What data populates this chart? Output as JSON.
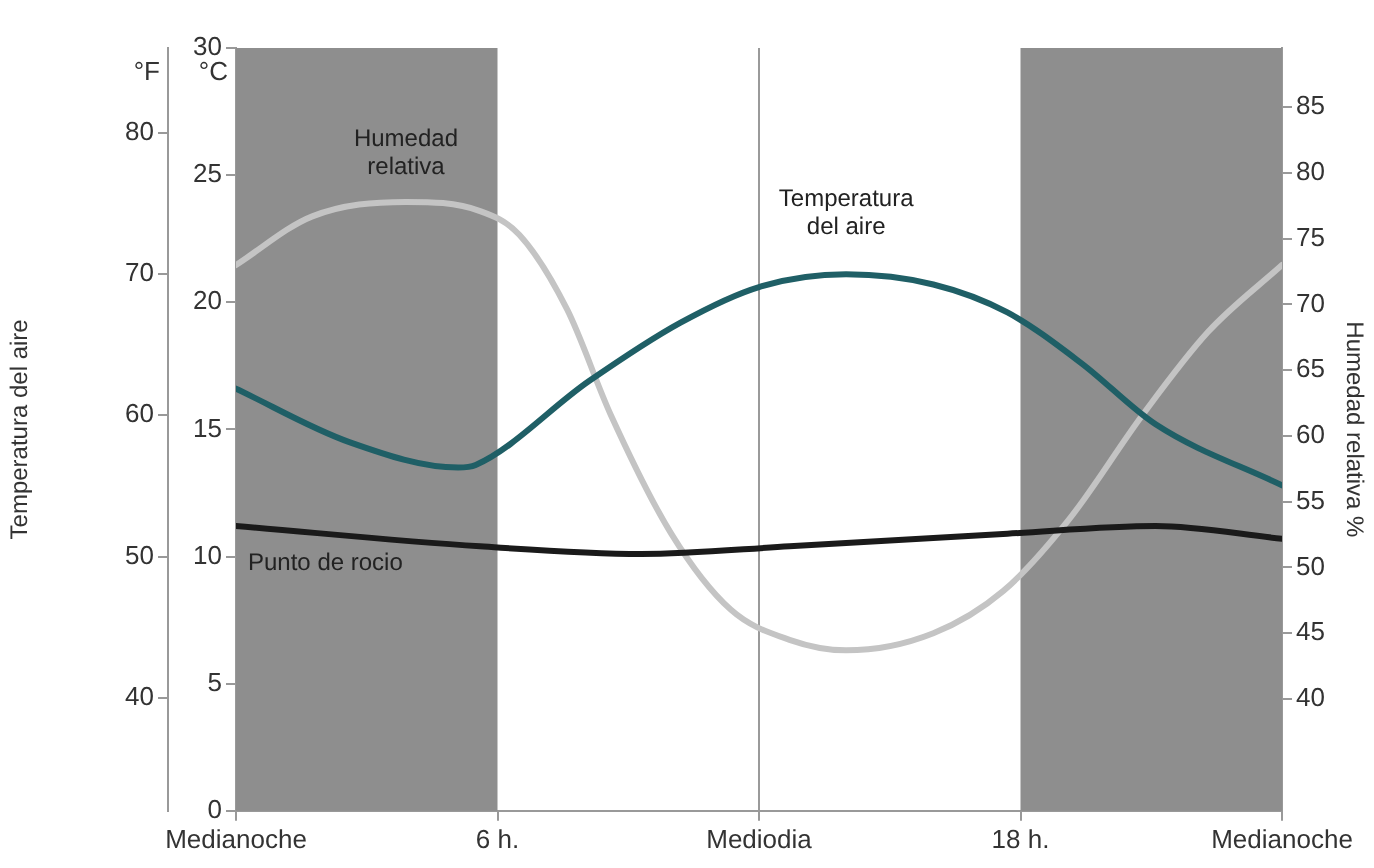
{
  "chart_data": {
    "type": "line",
    "ylabel": "Temperatura del aire",
    "y2label": "Humedad relativa %",
    "annotations": [
      "°F",
      "°C"
    ],
    "xlim": [
      0,
      24
    ],
    "xticks": [
      {
        "value": 0,
        "label": "Medianoche"
      },
      {
        "value": 6,
        "label": "6 h."
      },
      {
        "value": 12,
        "label": "Mediodia"
      },
      {
        "value": 18,
        "label": "18 h."
      },
      {
        "value": 24,
        "label": "Medianoche"
      }
    ],
    "ylim": [
      0,
      30
    ],
    "yticks": [
      0,
      5,
      10,
      15,
      20,
      25,
      30
    ],
    "y2lim": [
      31.5,
      89.5
    ],
    "y2ticks": [
      40,
      45,
      50,
      55,
      60,
      65,
      70,
      75,
      80,
      85
    ],
    "y3lim": [
      32,
      86
    ],
    "y3ticks": [
      40,
      50,
      60,
      70,
      80
    ],
    "grid": false,
    "legend": false,
    "marker": "none",
    "line_style": "solid",
    "bands": [
      {
        "axis": "x",
        "from": 0,
        "to": 6,
        "color": "#8e8e8e"
      },
      {
        "axis": "x",
        "from": 18,
        "to": 24,
        "color": "#8e8e8e"
      }
    ],
    "ref_lines": [
      {
        "axis": "x",
        "value": 12,
        "color": "#9a9a9a"
      }
    ],
    "series": [
      {
        "name": "Temperatura del aire",
        "color": "#1f5f66",
        "x": [
          0,
          2.6,
          5.1,
          5.5,
          8.1,
          10.2,
          12,
          14,
          16,
          17.7,
          19.4,
          21.1,
          24
        ],
        "values": [
          16.6,
          14.5,
          13.5,
          13.6,
          16.9,
          19.2,
          20.6,
          21.1,
          20.7,
          19.6,
          17.6,
          15.2,
          12.8
        ]
      },
      {
        "name": "Punto de rocio",
        "color": "#1a1a1a",
        "x": [
          0,
          5.6,
          9.3,
          12.7,
          17.7,
          21.1,
          24
        ],
        "values": [
          11.2,
          10.4,
          10.1,
          10.4,
          10.9,
          11.2,
          10.7
        ]
      },
      {
        "name": "Humedad relativa",
        "color": "#c4c4c4",
        "axis": "y2",
        "x": [
          0,
          1.75,
          3.9,
          5.6,
          6.5,
          7.6,
          8.6,
          10,
          11.35,
          12.7,
          14,
          16,
          17.6,
          19.1,
          20.8,
          22.3,
          24
        ],
        "values": [
          73,
          76.7,
          77.8,
          77.1,
          75.3,
          69.6,
          61.6,
          52.5,
          46.8,
          44.5,
          43.7,
          45,
          48.2,
          53.6,
          61.6,
          67.9,
          73
        ]
      }
    ]
  }
}
